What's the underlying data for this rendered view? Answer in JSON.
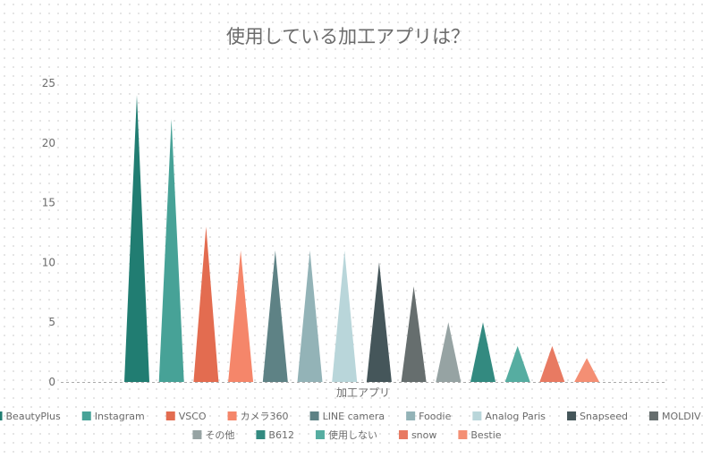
{
  "chart_data": {
    "type": "bar",
    "title": "使用している加工アプリは？",
    "xlabel": "加工アプリ",
    "ylabel": "",
    "ylim": [
      0,
      25
    ],
    "yticks": [
      0,
      5,
      10,
      15,
      20,
      25
    ],
    "grid": false,
    "legend_position": "bottom",
    "bar_shape": "triangle",
    "series": [
      {
        "name": "BeautyPlus",
        "value": 24,
        "color": "#217d72"
      },
      {
        "name": "Instagram",
        "value": 22,
        "color": "#47a297"
      },
      {
        "name": "VSCO",
        "value": 13,
        "color": "#e36c50"
      },
      {
        "name": "カメラ360",
        "value": 11,
        "color": "#f5866a"
      },
      {
        "name": "LINE camera",
        "value": 11,
        "color": "#5e8285"
      },
      {
        "name": "Foodie",
        "value": 11,
        "color": "#93b3b7"
      },
      {
        "name": "Analog Paris",
        "value": 11,
        "color": "#b9d6da"
      },
      {
        "name": "Snapseed",
        "value": 10,
        "color": "#45565a"
      },
      {
        "name": "MOLDIV",
        "value": 8,
        "color": "#666e6e"
      },
      {
        "name": "その他",
        "value": 5,
        "color": "#96a3a3"
      },
      {
        "name": "B612",
        "value": 5,
        "color": "#338a80"
      },
      {
        "name": "使用しない",
        "value": 3,
        "color": "#56ada1"
      },
      {
        "name": "snow",
        "value": 3,
        "color": "#e87a62"
      },
      {
        "name": "Bestie",
        "value": 2,
        "color": "#f48f74"
      }
    ]
  }
}
